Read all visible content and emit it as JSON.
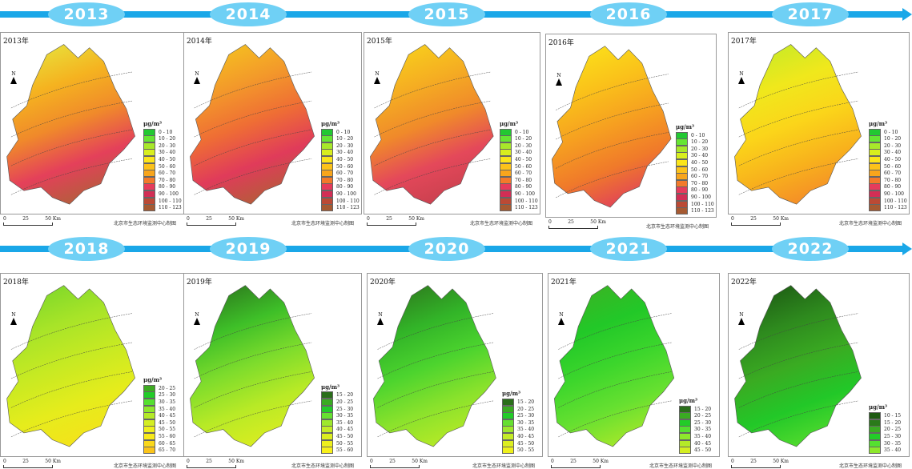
{
  "timeline_rows": [
    {
      "years": [
        "2013",
        "2014",
        "2015",
        "2016",
        "2017"
      ]
    },
    {
      "years": [
        "2018",
        "2019",
        "2020",
        "2021",
        "2022"
      ]
    }
  ],
  "scale": {
    "t0": "0",
    "t1": "25",
    "t2": "50 Km"
  },
  "credit": "北京市生态环境监测中心制图",
  "north": "N",
  "unit": "μg/m³",
  "panels": [
    {
      "label": "2013年",
      "map_colors": [
        "#e8e03a",
        "#f5b320",
        "#f08a2a",
        "#e4405a",
        "#b0603a"
      ],
      "legend": [
        [
          "0 - 10",
          "#22c832"
        ],
        [
          "10 - 20",
          "#66e633"
        ],
        [
          "20 - 30",
          "#a8e82a"
        ],
        [
          "30 - 40",
          "#d8ee1e"
        ],
        [
          "40 - 50",
          "#fbe51a"
        ],
        [
          "50 - 60",
          "#fcc21a"
        ],
        [
          "60 - 70",
          "#f8a51c"
        ],
        [
          "70 - 80",
          "#f37a2a"
        ],
        [
          "80 - 90",
          "#e63b5c"
        ],
        [
          "90 - 100",
          "#d22e55"
        ],
        [
          "100 - 110",
          "#bb4a35"
        ],
        [
          "110 - 123",
          "#a65a32"
        ]
      ]
    },
    {
      "label": "2014年",
      "map_colors": [
        "#f5c020",
        "#f39a2a",
        "#ef6e34",
        "#e03b5a",
        "#b25e38"
      ],
      "legend": [
        [
          "0 - 10",
          "#22c832"
        ],
        [
          "10 - 20",
          "#66e633"
        ],
        [
          "20 - 30",
          "#a8e82a"
        ],
        [
          "30 - 40",
          "#d8ee1e"
        ],
        [
          "40 - 50",
          "#fbe51a"
        ],
        [
          "50 - 60",
          "#fcc21a"
        ],
        [
          "60 - 70",
          "#f8a51c"
        ],
        [
          "70 - 80",
          "#f37a2a"
        ],
        [
          "80 - 90",
          "#e63b5c"
        ],
        [
          "90 - 100",
          "#d22e55"
        ],
        [
          "100 - 110",
          "#bb4a35"
        ],
        [
          "110 - 123",
          "#a65a32"
        ]
      ]
    },
    {
      "label": "2015年",
      "map_colors": [
        "#f8cf1c",
        "#f5ae22",
        "#f08a2a",
        "#e4485a",
        "#c8404e"
      ],
      "legend": [
        [
          "0 - 10",
          "#22c832"
        ],
        [
          "10 - 20",
          "#66e633"
        ],
        [
          "20 - 30",
          "#a8e82a"
        ],
        [
          "30 - 40",
          "#d8ee1e"
        ],
        [
          "40 - 50",
          "#fbe51a"
        ],
        [
          "50 - 60",
          "#fcc21a"
        ],
        [
          "60 - 70",
          "#f8a51c"
        ],
        [
          "70 - 80",
          "#f37a2a"
        ],
        [
          "80 - 90",
          "#e63b5c"
        ],
        [
          "90 - 100",
          "#d22e55"
        ],
        [
          "100 - 110",
          "#bb4a35"
        ],
        [
          "110 - 123",
          "#a65a32"
        ]
      ]
    },
    {
      "label": "2016年",
      "map_colors": [
        "#fbe01a",
        "#fac21a",
        "#f6a020",
        "#f07a2a",
        "#e0405a"
      ],
      "legend": [
        [
          "0 - 10",
          "#22c832"
        ],
        [
          "10 - 20",
          "#66e633"
        ],
        [
          "20 - 30",
          "#a8e82a"
        ],
        [
          "30 - 40",
          "#d8ee1e"
        ],
        [
          "40 - 50",
          "#fbe51a"
        ],
        [
          "50 - 60",
          "#fcc21a"
        ],
        [
          "60 - 70",
          "#f8a51c"
        ],
        [
          "70 - 80",
          "#f37a2a"
        ],
        [
          "80 - 90",
          "#e63b5c"
        ],
        [
          "90 - 100",
          "#d22e55"
        ],
        [
          "100 - 110",
          "#bb4a35"
        ],
        [
          "110 - 123",
          "#a65a32"
        ]
      ]
    },
    {
      "label": "2017年",
      "map_colors": [
        "#c8ea26",
        "#f0e81c",
        "#fbd51a",
        "#f8b21c",
        "#f48a28"
      ],
      "legend": [
        [
          "0 - 10",
          "#22c832"
        ],
        [
          "10 - 20",
          "#66e633"
        ],
        [
          "20 - 30",
          "#a8e82a"
        ],
        [
          "30 - 40",
          "#d8ee1e"
        ],
        [
          "40 - 50",
          "#fbe51a"
        ],
        [
          "50 - 60",
          "#fcc21a"
        ],
        [
          "60 - 70",
          "#f8a51c"
        ],
        [
          "70 - 80",
          "#f37a2a"
        ],
        [
          "80 - 90",
          "#e63b5c"
        ],
        [
          "90 - 100",
          "#d22e55"
        ],
        [
          "100 - 110",
          "#bb4a35"
        ],
        [
          "110 - 123",
          "#a65a32"
        ]
      ]
    },
    {
      "label": "2018年",
      "map_colors": [
        "#7ed82a",
        "#a8e428",
        "#c8ea22",
        "#e6ec1c",
        "#f5e21a"
      ],
      "legend": [
        [
          "20 - 25",
          "#3eab22"
        ],
        [
          "25 - 30",
          "#22cc28"
        ],
        [
          "30 - 35",
          "#55e030"
        ],
        [
          "35 - 40",
          "#8ee82c"
        ],
        [
          "40 - 45",
          "#b4ea28"
        ],
        [
          "45 - 50",
          "#d4ee22"
        ],
        [
          "50 - 55",
          "#eef01c"
        ],
        [
          "55 - 60",
          "#f8ea1a"
        ],
        [
          "60 - 65",
          "#fbd81a"
        ],
        [
          "65 - 70",
          "#fbc41a"
        ]
      ]
    },
    {
      "label": "2019年",
      "map_colors": [
        "#2e7e1e",
        "#3ebf28",
        "#7ddc2c",
        "#b8ea26",
        "#dced20"
      ],
      "legend": [
        [
          "15 - 20",
          "#2a6e1a"
        ],
        [
          "20 - 25",
          "#3aab22"
        ],
        [
          "25 - 30",
          "#22cc28"
        ],
        [
          "30 - 35",
          "#66e030"
        ],
        [
          "35 - 40",
          "#9ee82c"
        ],
        [
          "40 - 45",
          "#c4ec26"
        ],
        [
          "45 - 50",
          "#dcee20"
        ],
        [
          "50 - 55",
          "#eef01c"
        ],
        [
          "55 - 60",
          "#f8f01a"
        ]
      ]
    },
    {
      "label": "2020年",
      "map_colors": [
        "#2e7e1e",
        "#32b428",
        "#4cd42e",
        "#8ae22c",
        "#b8ea26"
      ],
      "legend": [
        [
          "15 - 20",
          "#2a6e1a"
        ],
        [
          "20 - 25",
          "#3aab22"
        ],
        [
          "25 - 30",
          "#22cc28"
        ],
        [
          "30 - 35",
          "#66e030"
        ],
        [
          "35 - 40",
          "#9ee82c"
        ],
        [
          "40 - 45",
          "#c4ec26"
        ],
        [
          "45 - 50",
          "#dcee20"
        ],
        [
          "50 - 55",
          "#eef01c"
        ]
      ]
    },
    {
      "label": "2021年",
      "map_colors": [
        "#3ab424",
        "#22c828",
        "#3cd62c",
        "#66e030",
        "#a8e82a"
      ],
      "legend": [
        [
          "15 - 20",
          "#2a6e1a"
        ],
        [
          "20 - 25",
          "#3aab22"
        ],
        [
          "25 - 30",
          "#22cc28"
        ],
        [
          "30 - 35",
          "#55e030"
        ],
        [
          "35 - 40",
          "#8ee82c"
        ],
        [
          "40 - 45",
          "#b4ea28"
        ],
        [
          "45 - 50",
          "#d4ee22"
        ]
      ]
    },
    {
      "label": "2022年",
      "map_colors": [
        "#1e5e14",
        "#2e8a1e",
        "#3aab22",
        "#22c828",
        "#55dc2e"
      ],
      "legend": [
        [
          "10 - 15",
          "#1e5a12"
        ],
        [
          "15 - 20",
          "#2a7a1a"
        ],
        [
          "20 - 25",
          "#3aab22"
        ],
        [
          "25 - 30",
          "#22cc28"
        ],
        [
          "30 - 35",
          "#55e030"
        ],
        [
          "35 - 40",
          "#8ee82c"
        ]
      ]
    }
  ]
}
